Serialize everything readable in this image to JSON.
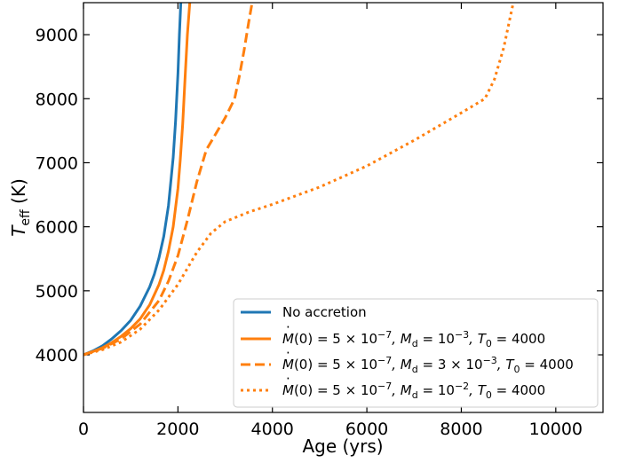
{
  "chart_data": {
    "type": "line",
    "xlabel": "Age (yrs)",
    "ylabel_main": "T",
    "ylabel_sub": "eff",
    "ylabel_unit": " (K)",
    "xlim": [
      0,
      11000
    ],
    "ylim": [
      3100,
      9500
    ],
    "xticks": [
      0,
      2000,
      4000,
      6000,
      8000,
      10000
    ],
    "yticks": [
      4000,
      5000,
      6000,
      7000,
      8000,
      9000
    ],
    "xtick_labels": [
      "0",
      "2000",
      "4000",
      "6000",
      "8000",
      "10000"
    ],
    "ytick_labels": [
      "4000",
      "5000",
      "6000",
      "7000",
      "8000",
      "9000"
    ],
    "legend_position": "lower-right",
    "series": [
      {
        "name": "No accretion",
        "color": "#1f77b4",
        "style": "solid",
        "x": [
          0,
          200,
          400,
          600,
          800,
          1000,
          1200,
          1400,
          1500,
          1600,
          1700,
          1800,
          1900,
          1950,
          2000,
          2030,
          2060
        ],
        "y": [
          4000,
          4060,
          4140,
          4250,
          4380,
          4540,
          4760,
          5060,
          5260,
          5520,
          5850,
          6330,
          7080,
          7650,
          8400,
          9000,
          9500
        ]
      },
      {
        "name": "Ṁ(0) = 5 × 10⁻⁷, Md = 10⁻³, T0 = 4000",
        "color": "#ff7f0e",
        "style": "solid",
        "x": [
          0,
          200,
          400,
          600,
          800,
          1000,
          1200,
          1400,
          1600,
          1700,
          1800,
          1900,
          2000,
          2050,
          2100,
          2150,
          2200,
          2250
        ],
        "y": [
          4000,
          4050,
          4110,
          4190,
          4290,
          4410,
          4560,
          4780,
          5100,
          5320,
          5620,
          6000,
          6600,
          7050,
          7600,
          8300,
          9000,
          9500
        ]
      },
      {
        "name": "Ṁ(0) = 5 × 10⁻⁷, Md = 3 × 10⁻³, T0 = 4000",
        "color": "#ff7f0e",
        "style": "dashed",
        "x": [
          0,
          400,
          800,
          1200,
          1600,
          1800,
          2000,
          2200,
          2400,
          2600,
          2800,
          3000,
          3200,
          3300,
          3400,
          3500,
          3570
        ],
        "y": [
          4000,
          4100,
          4250,
          4480,
          4850,
          5150,
          5550,
          6100,
          6700,
          7200,
          7450,
          7700,
          8000,
          8350,
          8750,
          9200,
          9500
        ]
      },
      {
        "name": "Ṁ(0) = 5 × 10⁻⁷, Md = 10⁻², T0 = 4000",
        "color": "#ff7f0e",
        "style": "dotted",
        "x": [
          0,
          400,
          800,
          1200,
          1600,
          2000,
          2400,
          2700,
          3000,
          3500,
          4000,
          5000,
          6000,
          7000,
          8000,
          8500,
          8700,
          8900,
          9000,
          9100
        ],
        "y": [
          4000,
          4080,
          4200,
          4400,
          4700,
          5100,
          5600,
          5900,
          6080,
          6230,
          6350,
          6620,
          6950,
          7350,
          7780,
          8000,
          8300,
          8800,
          9150,
          9500
        ]
      }
    ]
  },
  "legend": {
    "entries": [
      {
        "prefix": "No accretion"
      },
      {
        "mdot": "M",
        "p1": "(0) = 5 × 10",
        "e1": "−7",
        "p2": ", M",
        "s1": "d",
        "p3": " = 10",
        "e2": "−3",
        "p4": ", T",
        "s2": "0",
        "p5": " = 4000"
      },
      {
        "mdot": "M",
        "p1": "(0) = 5 × 10",
        "e1": "−7",
        "p2": ", M",
        "s1": "d",
        "p3": " = 3 × 10",
        "e2": "−3",
        "p4": ", T",
        "s2": "0",
        "p5": " = 4000"
      },
      {
        "mdot": "M",
        "p1": "(0) = 5 × 10",
        "e1": "−7",
        "p2": ", M",
        "s1": "d",
        "p3": " = 10",
        "e2": "−2",
        "p4": ", T",
        "s2": "0",
        "p5": " = 4000"
      }
    ]
  }
}
